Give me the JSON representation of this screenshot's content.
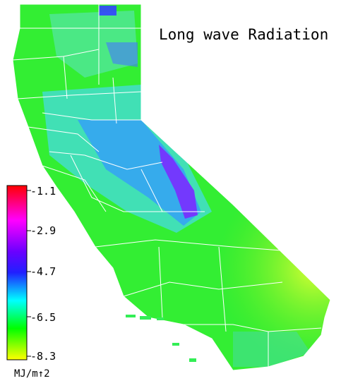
{
  "title": "Long wave Radiation",
  "colorbar": {
    "unit": "MJ/m↑2",
    "ticks": [
      "-1.1",
      "-2.9",
      "-4.7",
      "-6.5",
      "-8.3"
    ],
    "colors": [
      "#ff0000",
      "#ff00ff",
      "#2020ff",
      "#00ffff",
      "#00ff00",
      "#ffff00"
    ]
  },
  "map_colors": {
    "coast_low": "#22ee22",
    "valley": "#33ddee",
    "sierra_high": "#3355ff",
    "peak": "#aa22ee",
    "desert": "#ccff33",
    "county_lines": "#ffffff"
  }
}
